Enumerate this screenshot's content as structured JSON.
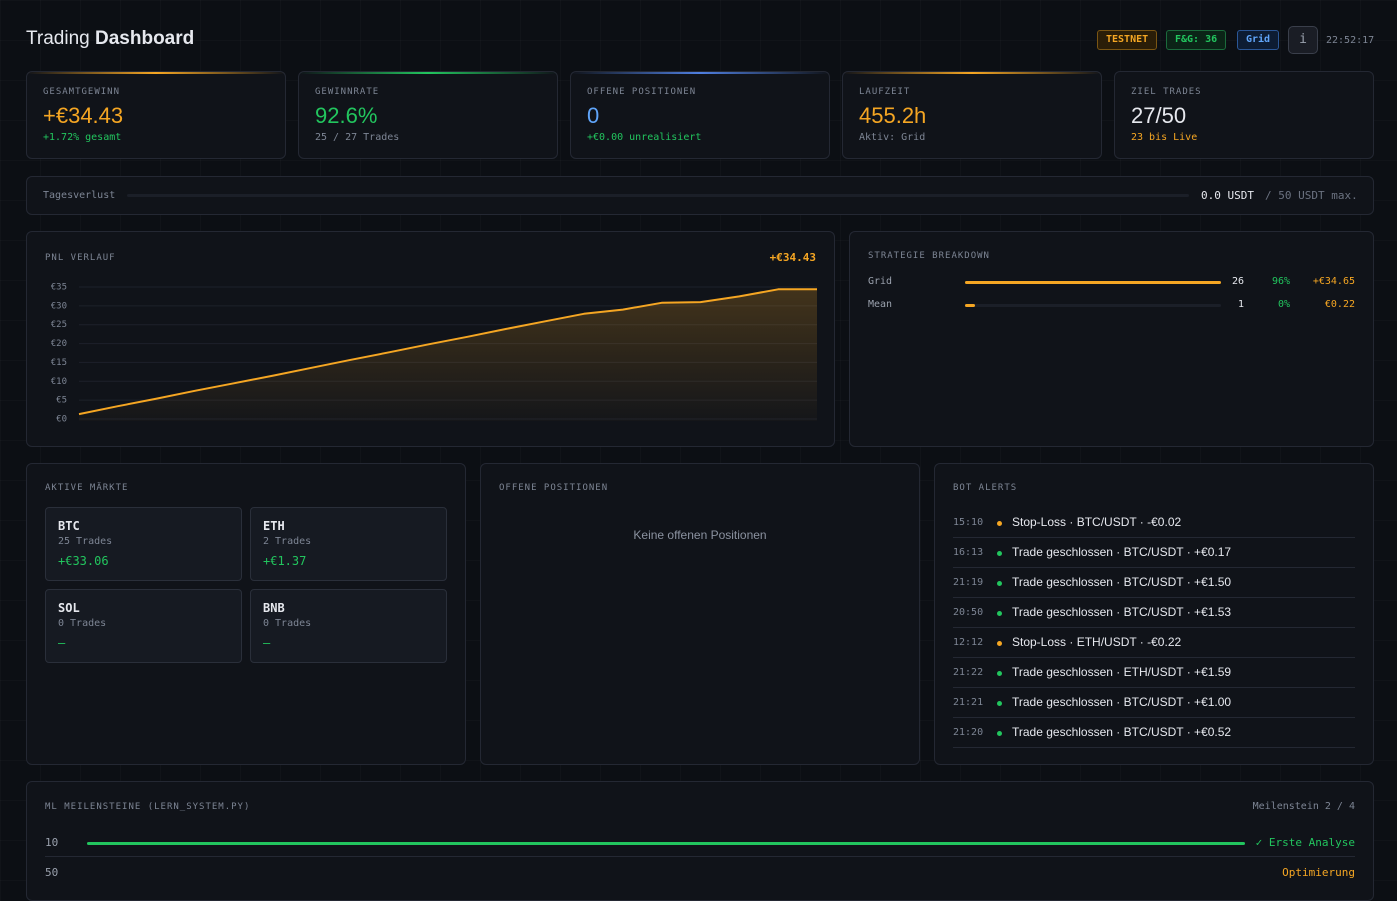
{
  "header": {
    "title_light": "Trading",
    "title_bold": "Dashboard",
    "badges": [
      "TESTNET",
      "F&G: 36",
      "Grid"
    ],
    "info": "i",
    "time": "22:52:17"
  },
  "stats": [
    {
      "label": "GESAMTGEWINN",
      "value": "+€34.43",
      "sub": "+1.72% gesamt"
    },
    {
      "label": "GEWINNRATE",
      "value": "92.6%",
      "sub": "25 / 27 Trades"
    },
    {
      "label": "OFFENE POSITIONEN",
      "value": "0",
      "sub": "+€0.00 unrealisiert"
    },
    {
      "label": "LAUFZEIT",
      "value": "455.2h",
      "sub": "Aktiv: Grid"
    },
    {
      "label": "ZIEL TRADES",
      "value": "27/50",
      "sub": "23 bis Live"
    }
  ],
  "daily_loss": {
    "label": "Tagesverlust",
    "value": "0.0 USDT",
    "max": "/ 50 USDT max."
  },
  "pnl_chart": {
    "type": "line",
    "title": "PNL VERLAUF",
    "total": "+€34.43",
    "color": "#f5a623",
    "values": [
      1.3,
      3.4,
      5.4,
      7.5,
      9.5,
      11.5,
      13.6,
      15.7,
      17.7,
      19.8,
      21.8,
      23.9,
      25.9,
      27.9,
      29.0,
      30.8,
      31.0,
      32.5,
      34.4,
      34.4
    ],
    "ylim": [
      0,
      35
    ],
    "yticks": [
      {
        "value": 0,
        "label": "€0"
      },
      {
        "value": 5,
        "label": "€5"
      },
      {
        "value": 10,
        "label": "€10"
      },
      {
        "value": 15,
        "label": "€15"
      },
      {
        "value": 20,
        "label": "€20"
      },
      {
        "value": 25,
        "label": "€25"
      },
      {
        "value": 30,
        "label": "€30"
      },
      {
        "value": 35,
        "label": "€35"
      }
    ],
    "grid": true
  },
  "strategy": {
    "title": "STRATEGIE BREAKDOWN",
    "rows": [
      {
        "name": "Grid",
        "trades": 26,
        "rate": "96%",
        "pnl": "+€34.65"
      },
      {
        "name": "Mean",
        "trades": 1,
        "rate": "0%",
        "pnl": "€0.22"
      }
    ]
  },
  "markets": {
    "title": "AKTIVE MÄRKTE",
    "items": [
      {
        "symbol": "BTC",
        "trades": "25 Trades",
        "pnl": "+€33.06"
      },
      {
        "symbol": "ETH",
        "trades": "2 Trades",
        "pnl": "+€1.37"
      },
      {
        "symbol": "SOL",
        "trades": "0 Trades",
        "pnl": "—"
      },
      {
        "symbol": "BNB",
        "trades": "0 Trades",
        "pnl": "—"
      }
    ]
  },
  "positions": {
    "title": "OFFENE POSITIONEN",
    "empty": "Keine offenen Positionen"
  },
  "alerts": {
    "title": "BOT ALERTS",
    "items": [
      {
        "time": "15:10",
        "text": "Stop-Loss · BTC/USDT · -€0.02",
        "color": "#f5a623"
      },
      {
        "time": "16:13",
        "text": "Trade geschlossen · BTC/USDT · +€0.17",
        "color": "#22c55e"
      },
      {
        "time": "21:19",
        "text": "Trade geschlossen · BTC/USDT · +€1.50",
        "color": "#22c55e"
      },
      {
        "time": "20:50",
        "text": "Trade geschlossen · BTC/USDT · +€1.53",
        "color": "#22c55e"
      },
      {
        "time": "12:12",
        "text": "Stop-Loss · ETH/USDT · -€0.22",
        "color": "#f5a623"
      },
      {
        "time": "21:22",
        "text": "Trade geschlossen · ETH/USDT · +€1.59",
        "color": "#22c55e"
      },
      {
        "time": "21:21",
        "text": "Trade geschlossen · BTC/USDT · +€1.00",
        "color": "#22c55e"
      },
      {
        "time": "21:20",
        "text": "Trade geschlossen · BTC/USDT · +€0.52",
        "color": "#22c55e"
      }
    ]
  },
  "milestones": {
    "title": "ML MEILENSTEINE (LERN_SYSTEM.PY)",
    "status": "Meilenstein 2 / 4",
    "rows": [
      {
        "threshold": "10",
        "label": "✓ Erste Analyse"
      },
      {
        "threshold": "50",
        "label": "Optimierung"
      }
    ]
  }
}
